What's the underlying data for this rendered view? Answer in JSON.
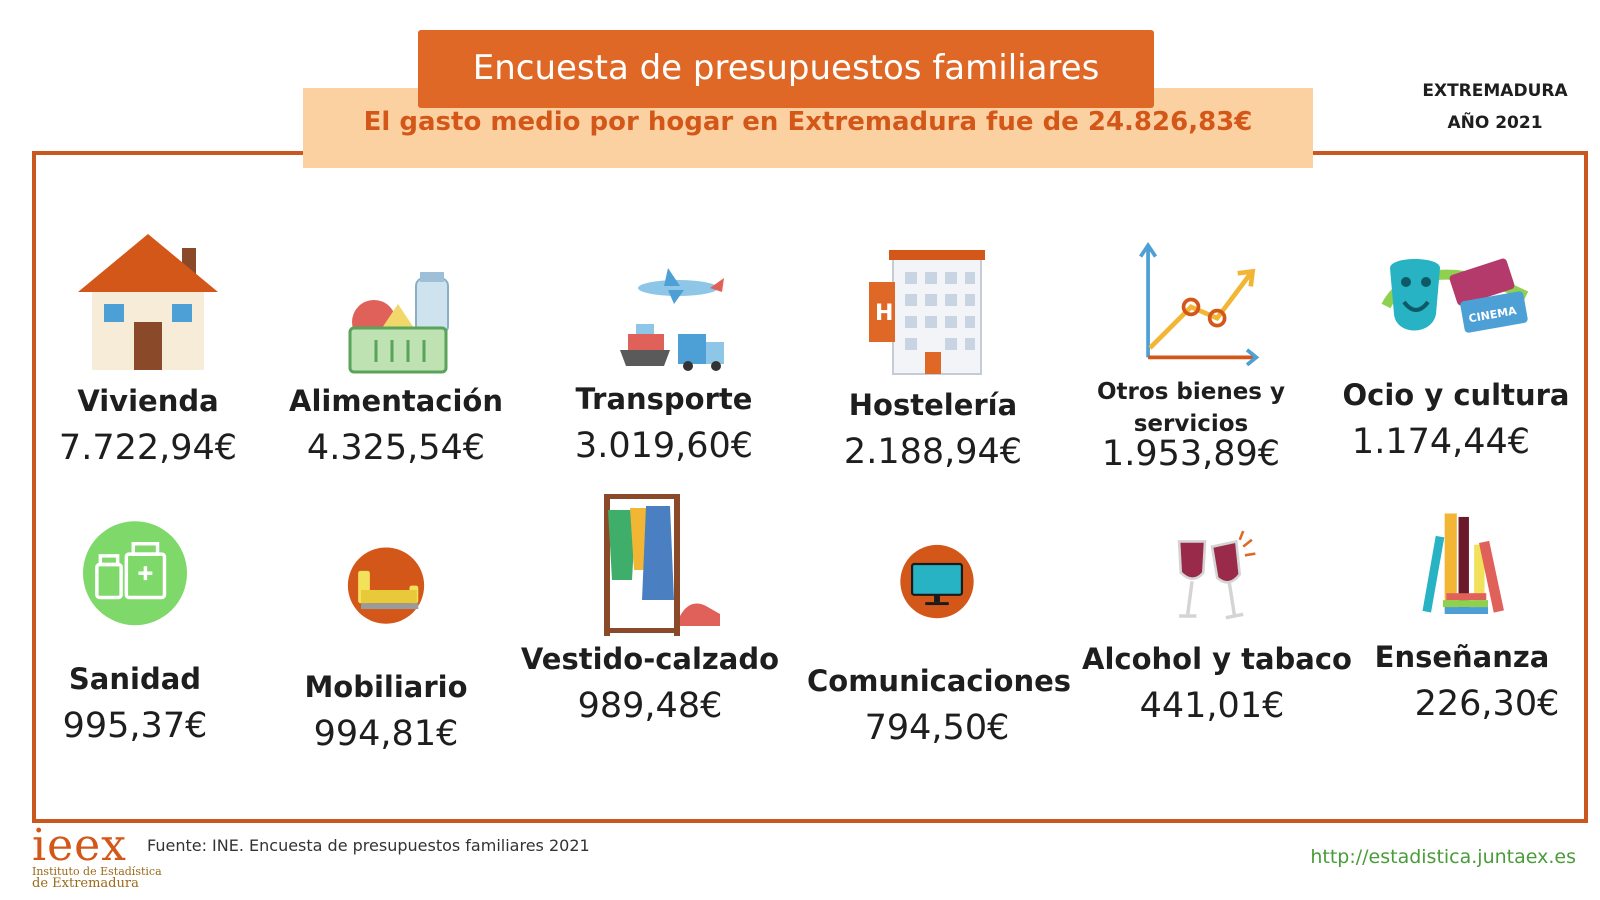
{
  "header": {
    "title": "Encuesta de presupuestos familiares",
    "subtitle": "El gasto medio por hogar en Extremadura fue de 24.826,83€",
    "region": "EXTREMADURA",
    "year": "AÑO 2021"
  },
  "categories": [
    {
      "label": "Vivienda",
      "value": "7.722,94€",
      "icon": "house-icon"
    },
    {
      "label": "Alimentación",
      "value": "4.325,54€",
      "icon": "food-basket-icon"
    },
    {
      "label": "Transporte",
      "value": "3.019,60€",
      "icon": "transport-icon"
    },
    {
      "label": "Hostelería",
      "value": "2.188,94€",
      "icon": "hotel-icon"
    },
    {
      "label": "Otros bienes y servicios",
      "value": "1.953,89€",
      "icon": "growth-chart-icon"
    },
    {
      "label": "Ocio y cultura",
      "value": "1.174,44€",
      "icon": "theatre-cinema-icon"
    },
    {
      "label": "Sanidad",
      "value": "995,37€",
      "icon": "medicine-icon"
    },
    {
      "label": "Mobiliario",
      "value": "994,81€",
      "icon": "sofa-icon"
    },
    {
      "label": "Vestido-calzado",
      "value": "989,48€",
      "icon": "clothes-rack-icon"
    },
    {
      "label": "Comunicaciones",
      "value": "794,50€",
      "icon": "monitor-icon"
    },
    {
      "label": "Alcohol y tabaco",
      "value": "441,01€",
      "icon": "wine-glasses-icon"
    },
    {
      "label": "Enseñanza",
      "value": "226,30€",
      "icon": "books-icon"
    }
  ],
  "footer": {
    "source": "Fuente: INE. Encuesta de presupuestos familiares 2021",
    "url": "http://estadistica.juntaex.es",
    "logo_mark": "ieex",
    "logo_line1": "Instituto de Estadística",
    "logo_line2": "de Extremadura"
  },
  "colors": {
    "accent": "#e06826",
    "band": "#fcd1a2",
    "frame": "#c9571f",
    "link": "#4a9c3a"
  }
}
